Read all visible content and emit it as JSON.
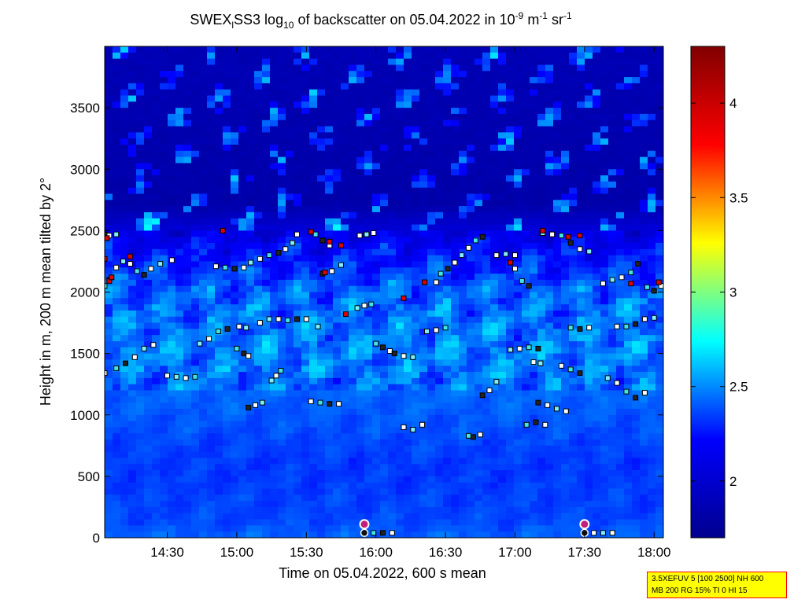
{
  "chart_data": {
    "type": "heatmap",
    "title": {
      "prefix": "SWEX",
      "prefix_sub": "l",
      "main": "SS3 log",
      "main_sub": "10",
      "middle": " of backscatter on 05.04.2022 in 10",
      "exp1": "-9",
      "unit1": " m",
      "exp2": "-1",
      "unit2": " sr",
      "exp3": "-1"
    },
    "xlabel": "Time on 05.04.2022, 600 s mean",
    "ylabel": "Height in m, 200 m mean tilted by 2°",
    "xlim": [
      "14:03",
      "18:04"
    ],
    "ylim": [
      0,
      4000
    ],
    "x_ticks": [
      "14:30",
      "15:00",
      "15:30",
      "16:00",
      "16:30",
      "17:00",
      "17:30",
      "18:00"
    ],
    "y_ticks": [
      0,
      500,
      1000,
      1500,
      2000,
      2500,
      3000,
      3500
    ],
    "colorbar": {
      "range": [
        1.7,
        4.3
      ],
      "ticks": [
        2,
        2.5,
        3,
        3.5,
        4
      ],
      "colormap": "jet",
      "colors": [
        "#00008f",
        "#0000ff",
        "#00ffff",
        "#ffff00",
        "#ff0000",
        "#800000"
      ]
    },
    "mean_profile": [
      {
        "height": 0,
        "value": 2.42
      },
      {
        "height": 150,
        "value": 2.36
      },
      {
        "height": 600,
        "value": 2.33
      },
      {
        "height": 1000,
        "value": 2.4
      },
      {
        "height": 1500,
        "value": 2.48
      },
      {
        "height": 2000,
        "value": 2.42
      },
      {
        "height": 2400,
        "value": 2.18
      },
      {
        "height": 2700,
        "value": 1.85
      },
      {
        "height": 4000,
        "value": 1.9
      }
    ],
    "layer_tracks": [
      {
        "points": [
          [
            "14:03",
            1340
          ],
          [
            "14:08",
            1380
          ],
          [
            "14:12",
            1420
          ],
          [
            "14:16",
            1470
          ],
          [
            "14:20",
            1540
          ],
          [
            "14:24",
            1570
          ]
        ]
      },
      {
        "points": [
          [
            "14:03",
            2050
          ],
          [
            "14:05",
            2100
          ],
          [
            "14:08",
            2200
          ],
          [
            "14:11",
            2250
          ],
          [
            "14:14",
            2230
          ],
          [
            "14:17",
            2170
          ],
          [
            "14:20",
            2140
          ],
          [
            "14:23",
            2190
          ],
          [
            "14:27",
            2230
          ],
          [
            "14:32",
            2260
          ]
        ]
      },
      {
        "points": [
          [
            "14:03",
            2470
          ],
          [
            "14:05",
            2460
          ],
          [
            "14:08",
            2470
          ]
        ]
      },
      {
        "points": [
          [
            "14:30",
            1320
          ],
          [
            "14:34",
            1310
          ],
          [
            "14:38",
            1300
          ],
          [
            "14:42",
            1310
          ]
        ]
      },
      {
        "points": [
          [
            "14:44",
            1580
          ],
          [
            "14:48",
            1620
          ],
          [
            "14:52",
            1680
          ],
          [
            "14:56",
            1700
          ],
          [
            "15:01",
            1720
          ],
          [
            "15:04",
            1710
          ]
        ]
      },
      {
        "points": [
          [
            "14:51",
            2210
          ],
          [
            "14:55",
            2200
          ],
          [
            "14:59",
            2190
          ],
          [
            "15:03",
            2200
          ],
          [
            "15:06",
            2240
          ],
          [
            "15:10",
            2270
          ],
          [
            "15:14",
            2300
          ],
          [
            "15:18",
            2320
          ],
          [
            "15:21",
            2350
          ],
          [
            "15:24",
            2400
          ],
          [
            "15:26",
            2470
          ]
        ]
      },
      {
        "points": [
          [
            "15:00",
            1540
          ],
          [
            "15:03",
            1500
          ],
          [
            "15:05",
            1480
          ]
        ]
      },
      {
        "points": [
          [
            "15:05",
            1060
          ],
          [
            "15:08",
            1080
          ],
          [
            "15:11",
            1100
          ]
        ]
      },
      {
        "points": [
          [
            "15:10",
            1750
          ],
          [
            "15:14",
            1780
          ],
          [
            "15:18",
            1780
          ],
          [
            "15:22",
            1770
          ],
          [
            "15:26",
            1780
          ],
          [
            "15:30",
            1780
          ],
          [
            "15:35",
            1720
          ]
        ]
      },
      {
        "points": [
          [
            "15:15",
            1280
          ],
          [
            "15:17",
            1320
          ],
          [
            "15:19",
            1360
          ]
        ]
      },
      {
        "points": [
          [
            "15:32",
            1110
          ],
          [
            "15:36",
            1100
          ],
          [
            "15:40",
            1090
          ],
          [
            "15:44",
            1090
          ]
        ]
      },
      {
        "points": [
          [
            "15:34",
            2470
          ],
          [
            "15:37",
            2420
          ],
          [
            "15:40",
            2380
          ]
        ]
      },
      {
        "points": [
          [
            "15:37",
            2150
          ],
          [
            "15:41",
            2170
          ],
          [
            "15:45",
            2220
          ]
        ]
      },
      {
        "points": [
          [
            "15:53",
            2460
          ],
          [
            "15:56",
            2470
          ],
          [
            "15:59",
            2480
          ]
        ]
      },
      {
        "points": [
          [
            "15:52",
            1870
          ],
          [
            "15:55",
            1890
          ],
          [
            "15:58",
            1900
          ]
        ]
      },
      {
        "points": [
          [
            "15:55",
            40
          ],
          [
            "15:59",
            40
          ],
          [
            "16:03",
            40
          ],
          [
            "16:07",
            40
          ]
        ]
      },
      {
        "points": [
          [
            "16:00",
            1580
          ],
          [
            "16:03",
            1550
          ],
          [
            "16:06",
            1520
          ]
        ]
      },
      {
        "points": [
          [
            "16:08",
            1500
          ],
          [
            "16:12",
            1480
          ],
          [
            "16:16",
            1470
          ]
        ]
      },
      {
        "points": [
          [
            "16:12",
            900
          ],
          [
            "16:16",
            880
          ],
          [
            "16:20",
            920
          ]
        ]
      },
      {
        "points": [
          [
            "16:22",
            1680
          ],
          [
            "16:26",
            1690
          ],
          [
            "16:30",
            1710
          ]
        ]
      },
      {
        "points": [
          [
            "16:26",
            2080
          ],
          [
            "16:28",
            2150
          ],
          [
            "16:31",
            2190
          ],
          [
            "16:34",
            2240
          ],
          [
            "16:37",
            2300
          ],
          [
            "16:40",
            2360
          ],
          [
            "16:43",
            2420
          ],
          [
            "16:46",
            2450
          ]
        ]
      },
      {
        "points": [
          [
            "16:40",
            830
          ],
          [
            "16:42",
            820
          ],
          [
            "16:45",
            840
          ]
        ]
      },
      {
        "points": [
          [
            "16:46",
            1160
          ],
          [
            "16:49",
            1200
          ],
          [
            "16:52",
            1270
          ]
        ]
      },
      {
        "points": [
          [
            "16:52",
            2300
          ],
          [
            "16:56",
            2310
          ],
          [
            "17:00",
            2300
          ]
        ]
      },
      {
        "points": [
          [
            "16:58",
            1530
          ],
          [
            "17:02",
            1540
          ],
          [
            "17:06",
            1550
          ],
          [
            "17:10",
            1540
          ]
        ]
      },
      {
        "points": [
          [
            "17:00",
            2190
          ],
          [
            "17:03",
            2090
          ],
          [
            "17:06",
            2050
          ]
        ]
      },
      {
        "points": [
          [
            "17:05",
            920
          ],
          [
            "17:09",
            940
          ],
          [
            "17:13",
            920
          ]
        ]
      },
      {
        "points": [
          [
            "17:10",
            1100
          ],
          [
            "17:14",
            1080
          ],
          [
            "17:18",
            1050
          ],
          [
            "17:22",
            1030
          ]
        ]
      },
      {
        "points": [
          [
            "17:08",
            1430
          ],
          [
            "17:11",
            1420
          ]
        ]
      },
      {
        "points": [
          [
            "17:12",
            2480
          ],
          [
            "17:16",
            2470
          ],
          [
            "17:20",
            2460
          ],
          [
            "17:24",
            2400
          ],
          [
            "17:28",
            2350
          ],
          [
            "17:32",
            2330
          ]
        ]
      },
      {
        "points": [
          [
            "17:20",
            1400
          ],
          [
            "17:24",
            1370
          ],
          [
            "17:28",
            1340
          ]
        ]
      },
      {
        "points": [
          [
            "17:24",
            1710
          ],
          [
            "17:28",
            1700
          ],
          [
            "17:32",
            1710
          ]
        ]
      },
      {
        "points": [
          [
            "17:30",
            40
          ],
          [
            "17:34",
            40
          ],
          [
            "17:38",
            40
          ],
          [
            "17:42",
            40
          ]
        ]
      },
      {
        "points": [
          [
            "17:38",
            2070
          ],
          [
            "17:42",
            2100
          ],
          [
            "17:46",
            2120
          ],
          [
            "17:50",
            2160
          ],
          [
            "17:53",
            2230
          ]
        ]
      },
      {
        "points": [
          [
            "17:40",
            1300
          ],
          [
            "17:44",
            1260
          ],
          [
            "17:48",
            1190
          ],
          [
            "17:52",
            1140
          ],
          [
            "17:56",
            1180
          ]
        ]
      },
      {
        "points": [
          [
            "17:44",
            1720
          ],
          [
            "17:48",
            1720
          ],
          [
            "17:52",
            1740
          ],
          [
            "17:56",
            1780
          ],
          [
            "18:00",
            1790
          ]
        ]
      },
      {
        "points": [
          [
            "17:57",
            2040
          ],
          [
            "18:00",
            2010
          ],
          [
            "18:03",
            2050
          ]
        ]
      }
    ],
    "red_markers": [
      {
        "t": "14:03",
        "h": 2270
      },
      {
        "t": "14:04",
        "h": 2440
      },
      {
        "t": "14:05",
        "h": 2090
      },
      {
        "t": "14:06",
        "h": 2120
      },
      {
        "t": "14:14",
        "h": 2290
      },
      {
        "t": "14:54",
        "h": 2500
      },
      {
        "t": "15:32",
        "h": 2490
      },
      {
        "t": "15:38",
        "h": 2160
      },
      {
        "t": "15:40",
        "h": 2410
      },
      {
        "t": "15:45",
        "h": 2380
      },
      {
        "t": "15:47",
        "h": 1820
      },
      {
        "t": "16:12",
        "h": 1950
      },
      {
        "t": "16:21",
        "h": 2080
      },
      {
        "t": "16:58",
        "h": 2240
      },
      {
        "t": "17:12",
        "h": 2500
      },
      {
        "t": "17:23",
        "h": 2450
      },
      {
        "t": "17:28",
        "h": 2460
      },
      {
        "t": "17:50",
        "h": 2070
      },
      {
        "t": "18:02",
        "h": 2080
      }
    ],
    "circle_markers": [
      {
        "t": "15:55",
        "h": 110
      },
      {
        "t": "17:30",
        "h": 110
      }
    ],
    "ring_markers": [
      {
        "t": "15:55",
        "h": 40
      },
      {
        "t": "17:30",
        "h": 40
      }
    ]
  },
  "param_box": {
    "line1": "3.5XEFUV 5 [100 2500] NH 600",
    "line2": "MB 200 RG 15% TI 0 HI 15"
  }
}
